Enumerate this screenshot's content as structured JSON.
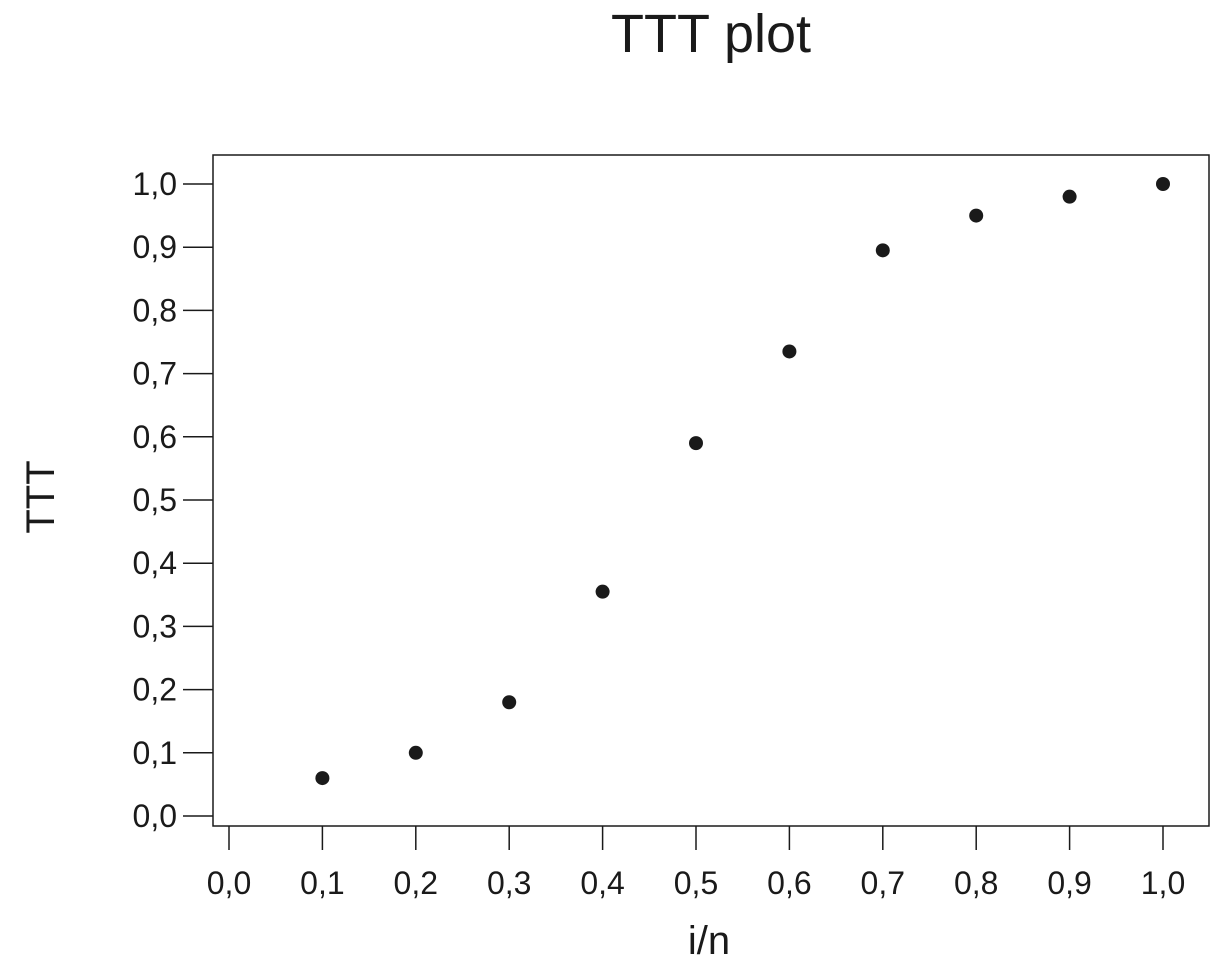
{
  "chart_data": {
    "type": "scatter",
    "title": "TTT plot",
    "xlabel": "i/n",
    "ylabel": "TTT",
    "xlim": [
      0.0,
      1.0
    ],
    "ylim": [
      0.0,
      1.0
    ],
    "x_ticks": [
      "0,0",
      "0,1",
      "0,2",
      "0,3",
      "0,4",
      "0,5",
      "0,6",
      "0,7",
      "0,8",
      "0,9",
      "1,0"
    ],
    "y_ticks": [
      "0,0",
      "0,1",
      "0,2",
      "0,3",
      "0,4",
      "0,5",
      "0,6",
      "0,7",
      "0,8",
      "0,9",
      "1,0"
    ],
    "grid": false,
    "legend": "none",
    "marker_color": "#1a1a1a",
    "series": [
      {
        "x": [
          0.1,
          0.2,
          0.3,
          0.4,
          0.5,
          0.6,
          0.7,
          0.8,
          0.9,
          1.0
        ],
        "y": [
          0.06,
          0.1,
          0.18,
          0.355,
          0.59,
          0.735,
          0.895,
          0.95,
          0.98,
          1.0
        ]
      }
    ]
  }
}
